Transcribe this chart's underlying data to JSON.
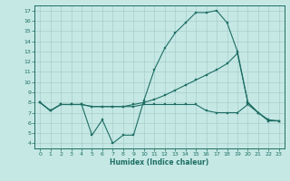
{
  "xlabel": "Humidex (Indice chaleur)",
  "bg_color": "#c5e8e5",
  "grid_color": "#a8ceca",
  "line_color": "#1e6e64",
  "xlim": [
    -0.5,
    23.5
  ],
  "ylim": [
    3.5,
    17.5
  ],
  "xticks": [
    0,
    1,
    2,
    3,
    4,
    5,
    6,
    7,
    8,
    9,
    10,
    11,
    12,
    13,
    14,
    15,
    16,
    17,
    18,
    19,
    20,
    21,
    22,
    23
  ],
  "yticks": [
    4,
    5,
    6,
    7,
    8,
    9,
    10,
    11,
    12,
    13,
    14,
    15,
    16,
    17
  ],
  "series1_x": [
    0,
    1,
    2,
    3,
    4,
    5,
    6,
    7,
    8,
    9,
    10,
    11,
    12,
    13,
    14,
    15,
    16,
    17,
    18,
    19,
    20,
    21,
    22,
    23
  ],
  "series1_y": [
    8.0,
    7.2,
    7.8,
    7.8,
    7.8,
    4.8,
    6.3,
    4.0,
    4.8,
    4.8,
    8.2,
    11.2,
    13.3,
    14.8,
    15.8,
    16.8,
    16.8,
    17.0,
    15.8,
    13.0,
    8.0,
    7.0,
    6.2,
    6.2
  ],
  "series2_x": [
    0,
    1,
    2,
    3,
    4,
    5,
    6,
    7,
    8,
    9,
    10,
    11,
    12,
    13,
    14,
    15,
    16,
    17,
    18,
    19,
    20,
    21,
    22,
    23
  ],
  "series2_y": [
    8.0,
    7.2,
    7.8,
    7.8,
    7.8,
    7.6,
    7.6,
    7.6,
    7.6,
    7.8,
    8.0,
    8.3,
    8.7,
    9.2,
    9.7,
    10.2,
    10.7,
    11.2,
    11.8,
    12.8,
    8.0,
    7.0,
    6.2,
    6.2
  ],
  "series3_x": [
    0,
    1,
    2,
    3,
    4,
    5,
    6,
    7,
    8,
    9,
    10,
    11,
    12,
    13,
    14,
    15,
    16,
    17,
    18,
    19,
    20,
    21,
    22,
    23
  ],
  "series3_y": [
    8.0,
    7.2,
    7.8,
    7.8,
    7.8,
    7.6,
    7.6,
    7.6,
    7.6,
    7.6,
    7.8,
    7.8,
    7.8,
    7.8,
    7.8,
    7.8,
    7.2,
    7.0,
    7.0,
    7.0,
    7.8,
    7.0,
    6.3,
    6.2
  ]
}
